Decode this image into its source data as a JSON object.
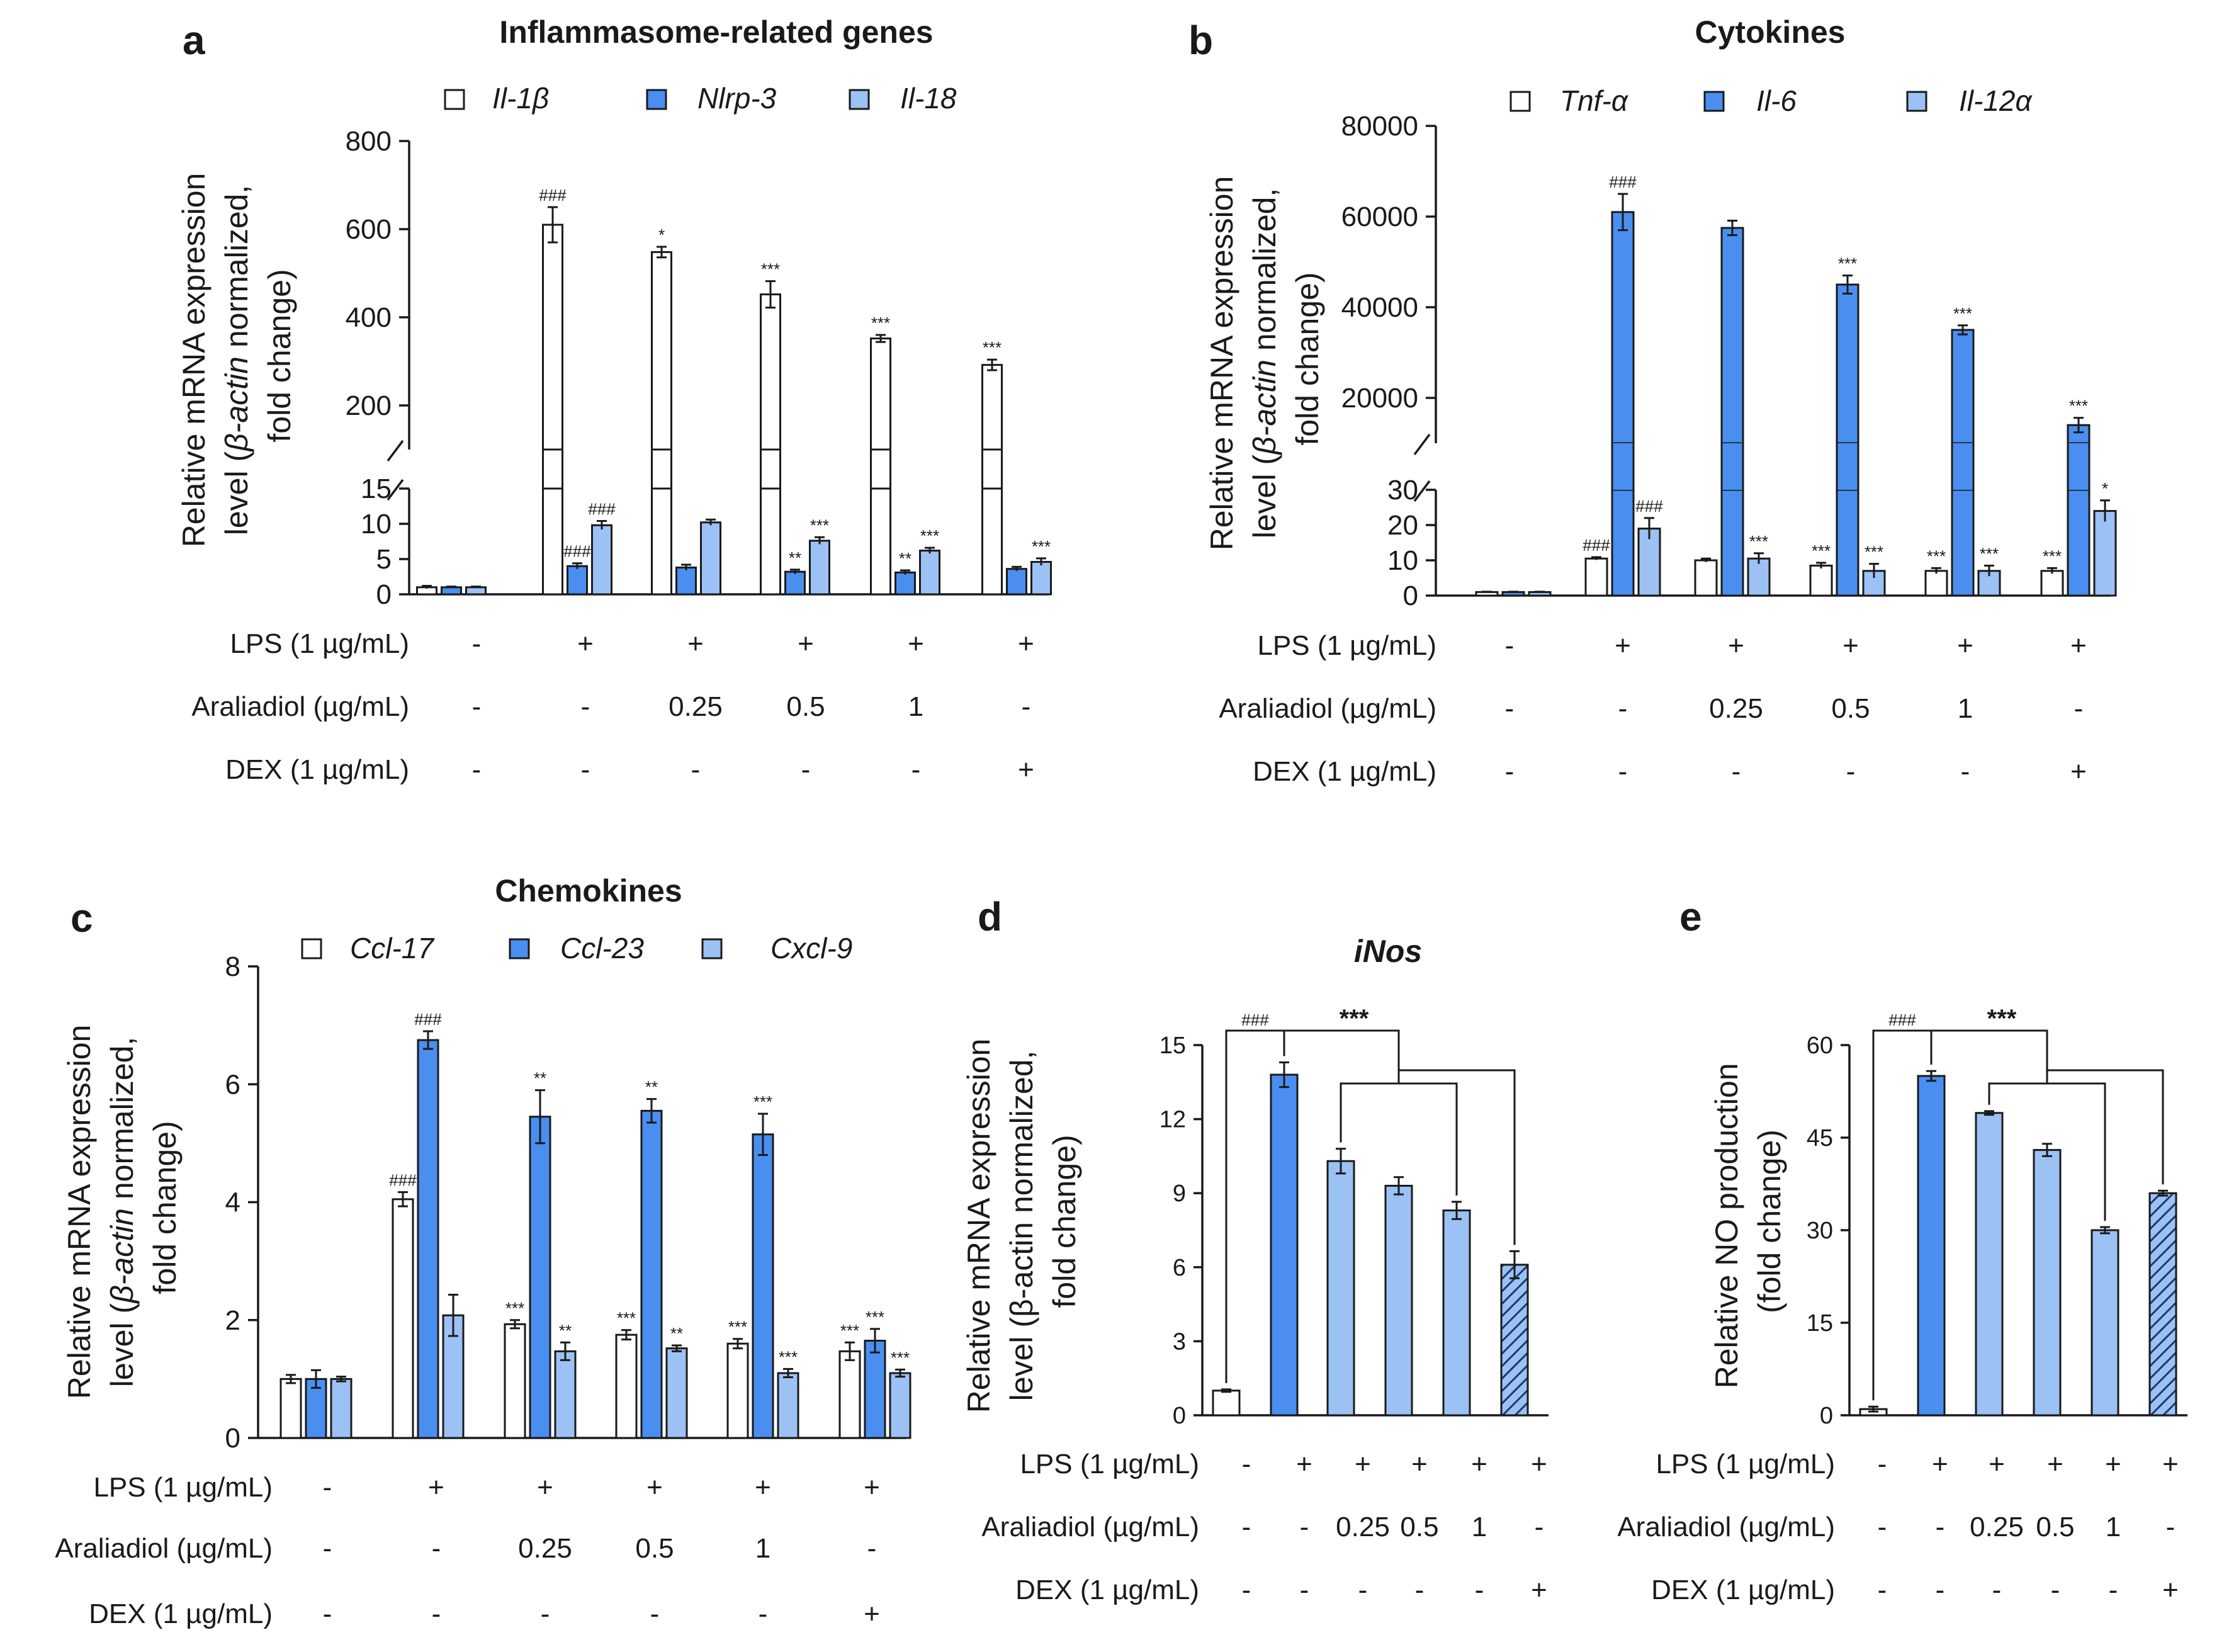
{
  "colors": {
    "white_bar": "#ffffff",
    "dark_blue": "#4a8ff0",
    "light_blue": "#9cc2f5",
    "outline": "#1a1a1a"
  },
  "conditions": {
    "lps_label": "LPS (1 µg/mL)",
    "araliadiol_label": "Araliadiol (µg/mL)",
    "dex_label": "DEX (1 µg/mL)",
    "lps": [
      "-",
      "+",
      "+",
      "+",
      "+",
      "+"
    ],
    "araliadiol": [
      "-",
      "-",
      "0.25",
      "0.5",
      "1",
      "-"
    ],
    "dex": [
      "-",
      "-",
      "-",
      "-",
      "-",
      "+"
    ]
  },
  "chart_data": [
    {
      "panel": "a",
      "type": "bar",
      "title": "Inflammasome-related genes",
      "ylabel_line1_pre": "Relative mRNA expression",
      "ylabel_line2_pre": "level (",
      "ylabel_line2_italic": "β-actin",
      "ylabel_line2_post": " normalized,",
      "ylabel_line3": "fold change)",
      "axis_break": true,
      "upper_range": [
        100,
        800
      ],
      "upper_ticks": [
        "200",
        "400",
        "600",
        "800"
      ],
      "upper_tick_values": [
        200,
        400,
        600,
        800
      ],
      "lower_range": [
        0,
        15
      ],
      "lower_ticks": [
        "0",
        "5",
        "10",
        "15"
      ],
      "lower_tick_values": [
        0,
        5,
        10,
        15
      ],
      "series": [
        {
          "name": "Il-1β",
          "color": "white",
          "values": [
            1,
            610,
            548,
            452,
            352,
            292
          ],
          "errors": [
            0.2,
            40,
            12,
            30,
            8,
            12
          ],
          "sig": [
            "",
            "###",
            "*",
            "***",
            "***",
            "***"
          ]
        },
        {
          "name": "Nlrp-3",
          "color": "dark",
          "values": [
            1,
            4.0,
            3.8,
            3.2,
            3.1,
            3.6
          ],
          "errors": [
            0.1,
            0.4,
            0.4,
            0.3,
            0.3,
            0.3
          ],
          "sig": [
            "",
            "###",
            "",
            "**",
            "**",
            ""
          ]
        },
        {
          "name": "Il-18",
          "color": "light",
          "values": [
            1,
            9.8,
            10.2,
            7.6,
            6.2,
            4.6
          ],
          "errors": [
            0.1,
            0.6,
            0.4,
            0.5,
            0.4,
            0.5
          ],
          "sig": [
            "",
            "###",
            "",
            "***",
            "***",
            "***"
          ]
        }
      ]
    },
    {
      "panel": "b",
      "type": "bar",
      "title": "Cytokines",
      "ylabel_line1_pre": "Relative mRNA expression",
      "ylabel_line2_pre": "level (",
      "ylabel_line2_italic": "β-actin",
      "ylabel_line2_post": " normalized,",
      "ylabel_line3": "fold change)",
      "axis_break": true,
      "upper_range": [
        10000,
        80000
      ],
      "upper_ticks": [
        "20000",
        "40000",
        "60000",
        "80000"
      ],
      "upper_tick_values": [
        20000,
        40000,
        60000,
        80000
      ],
      "lower_range": [
        0,
        30
      ],
      "lower_ticks": [
        "0",
        "10",
        "20",
        "30"
      ],
      "lower_tick_values": [
        0,
        10,
        20,
        30
      ],
      "series": [
        {
          "name": "Tnf-α",
          "color": "white",
          "values": [
            1,
            10.5,
            10.0,
            8.5,
            7.0,
            7.0
          ],
          "errors": [
            0.1,
            0.4,
            0.5,
            0.8,
            0.8,
            0.8
          ],
          "sig": [
            "",
            "###",
            "",
            "***",
            "***",
            "***"
          ]
        },
        {
          "name": "Il-6",
          "color": "dark",
          "values": [
            1,
            61000,
            57500,
            45000,
            35000,
            14000
          ],
          "errors": [
            0.1,
            4000,
            1600,
            2000,
            1000,
            1600
          ],
          "sig": [
            "",
            "###",
            "",
            "***",
            "***",
            "***"
          ]
        },
        {
          "name": "Il-12α",
          "color": "light",
          "values": [
            1,
            19,
            10.5,
            7,
            7,
            24
          ],
          "errors": [
            0.1,
            3,
            1.5,
            2,
            1.5,
            3
          ],
          "sig": [
            "",
            "###",
            "***",
            "***",
            "***",
            "*"
          ]
        }
      ]
    },
    {
      "panel": "c",
      "type": "bar",
      "title": "Chemokines",
      "ylabel_line1_pre": "Relative mRNA expression",
      "ylabel_line2_pre": "level (",
      "ylabel_line2_italic": "β-actin",
      "ylabel_line2_post": " normalized,",
      "ylabel_line3": "fold change)",
      "axis_break": false,
      "ylim": [
        0,
        8
      ],
      "ticks": [
        "0",
        "2",
        "4",
        "6",
        "8"
      ],
      "tick_values": [
        0,
        2,
        4,
        6,
        8
      ],
      "series": [
        {
          "name": "Ccl-17",
          "color": "white",
          "values": [
            1.0,
            4.05,
            1.93,
            1.75,
            1.6,
            1.47
          ],
          "errors": [
            0.07,
            0.12,
            0.07,
            0.08,
            0.08,
            0.15
          ],
          "sig": [
            "",
            "###",
            "***",
            "***",
            "***",
            "***"
          ]
        },
        {
          "name": "Ccl-23",
          "color": "dark",
          "values": [
            1.0,
            6.75,
            5.45,
            5.55,
            5.15,
            1.65
          ],
          "errors": [
            0.15,
            0.15,
            0.45,
            0.2,
            0.35,
            0.2
          ],
          "sig": [
            "",
            "###",
            "**",
            "**",
            "***",
            "***"
          ]
        },
        {
          "name": "Cxcl-9",
          "color": "light",
          "values": [
            1.0,
            2.08,
            1.47,
            1.52,
            1.1,
            1.1
          ],
          "errors": [
            0.04,
            0.35,
            0.15,
            0.05,
            0.07,
            0.06
          ],
          "sig": [
            "",
            "",
            "**",
            "**",
            "***",
            "***"
          ]
        }
      ]
    },
    {
      "panel": "d",
      "type": "bar",
      "title": "iNos",
      "ylabel_line1": "Relative mRNA expression",
      "ylabel_line2": "level (β-actin normalized,",
      "ylabel_line3": "fold change)",
      "ylim": [
        0,
        15
      ],
      "ticks": [
        "0",
        "3",
        "6",
        "9",
        "12",
        "15"
      ],
      "tick_values": [
        0,
        3,
        6,
        9,
        12,
        15
      ],
      "values": [
        1.0,
        13.8,
        10.3,
        9.3,
        8.3,
        6.1
      ],
      "errors": [
        0.05,
        0.5,
        0.5,
        0.35,
        0.35,
        0.55
      ],
      "bar_styles": [
        "white",
        "dark",
        "light",
        "light",
        "light",
        "hatched"
      ],
      "sig_left": "###",
      "sig_right": "***"
    },
    {
      "panel": "e",
      "type": "bar",
      "title": "",
      "ylabel_line1": "Relative NO production",
      "ylabel_line2": "(fold change)",
      "ylim": [
        0,
        60
      ],
      "ticks": [
        "0",
        "15",
        "30",
        "45",
        "60"
      ],
      "tick_values": [
        0,
        15,
        30,
        45,
        60
      ],
      "values": [
        1.0,
        55,
        49,
        43,
        30,
        36
      ],
      "errors": [
        0.4,
        0.8,
        0.3,
        1.0,
        0.5,
        0.4
      ],
      "bar_styles": [
        "white",
        "dark",
        "light",
        "light",
        "light",
        "hatched"
      ],
      "sig_left": "###",
      "sig_right": "***"
    }
  ]
}
